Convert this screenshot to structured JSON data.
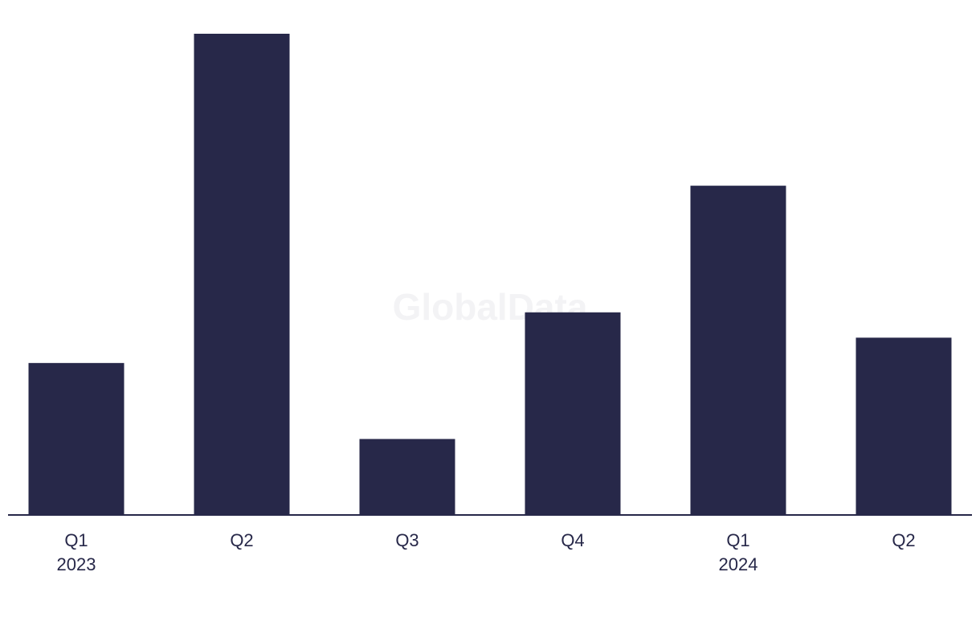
{
  "chart_data": {
    "type": "bar",
    "watermark": "GlobalData",
    "categories": [
      [
        "Q1",
        "2023"
      ],
      [
        "Q2"
      ],
      [
        "Q3"
      ],
      [
        "Q4"
      ],
      [
        "Q1",
        "2024"
      ],
      [
        "Q2"
      ]
    ],
    "values": [
      6,
      19,
      3,
      8,
      13,
      7
    ],
    "color": "#272849",
    "ylim": [
      0,
      19
    ]
  }
}
